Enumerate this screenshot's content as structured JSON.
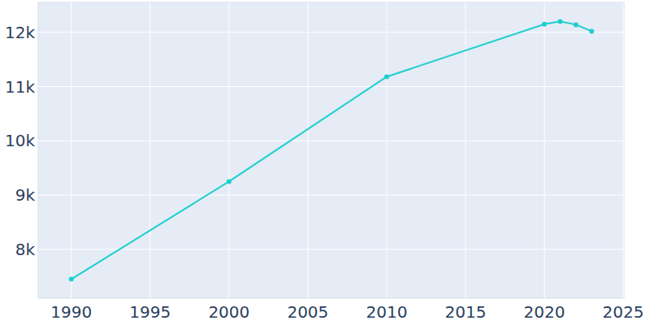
{
  "chart_data": {
    "type": "line",
    "x": [
      1990,
      2000,
      2010,
      2020,
      2021,
      2022,
      2023
    ],
    "values": [
      7450,
      9250,
      11180,
      12150,
      12200,
      12140,
      12020
    ],
    "color": "#1ccfcf",
    "marker": "circle",
    "xlim": [
      1987.9,
      2025.05
    ],
    "xticks": [
      1990,
      1995,
      2000,
      2005,
      2010,
      2015,
      2020,
      2025
    ],
    "ylim": [
      7100,
      12550
    ],
    "yticks": [
      {
        "value": 8000,
        "label": "8k"
      },
      {
        "value": 9000,
        "label": "9k"
      },
      {
        "value": 10000,
        "label": "10k"
      },
      {
        "value": 11000,
        "label": "11k"
      },
      {
        "value": 12000,
        "label": "12k"
      }
    ],
    "grid": true
  }
}
